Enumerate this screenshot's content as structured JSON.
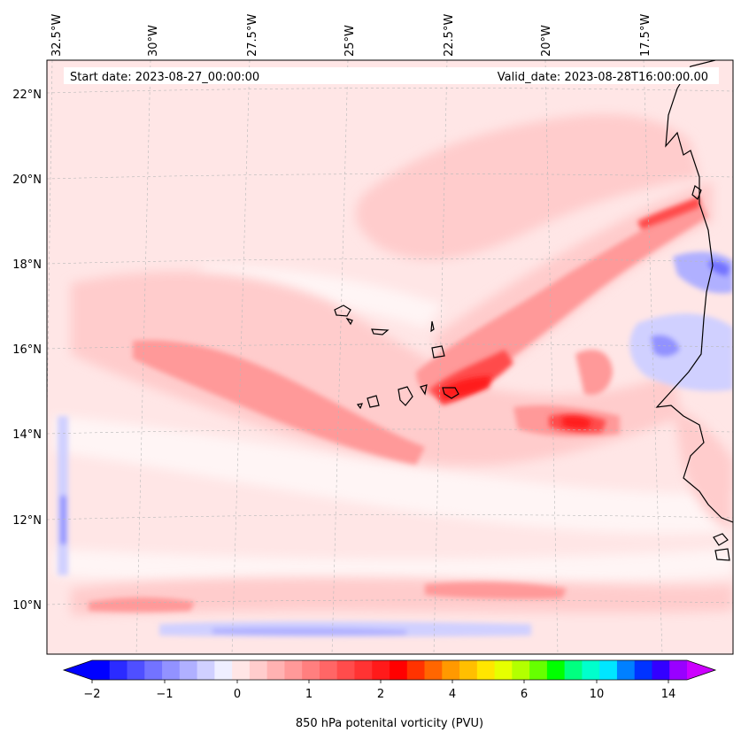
{
  "header": {
    "start_date": "Start date: 2023-08-27_00:00:00",
    "valid_date": "Valid_date: 2023-08-28T16:00:00.00"
  },
  "map": {
    "lon_labels": [
      "32.5°W",
      "30°W",
      "27.5°W",
      "25°W",
      "22.5°W",
      "20°W",
      "17.5°W"
    ],
    "lat_labels": [
      "22°N",
      "20°N",
      "18°N",
      "16°N",
      "14°N",
      "12°N",
      "10°N"
    ],
    "field": "850 hPa potential vorticity",
    "gridlines": true,
    "coastlines": true
  },
  "colorbar": {
    "label": "850 hPa potenital vorticity (PVU)",
    "tick_labels": [
      "−2",
      "−1",
      "0",
      "1",
      "2",
      "4",
      "6",
      "10",
      "14"
    ],
    "extend": "both",
    "colors": [
      "#0000ff",
      "#2b2bff",
      "#4f4fff",
      "#7373ff",
      "#9292ff",
      "#b0b0ff",
      "#d0d0ff",
      "#efefff",
      "#ffe6e6",
      "#ffcccc",
      "#ffb2b2",
      "#ff9999",
      "#ff7f7f",
      "#ff6666",
      "#ff4c4c",
      "#ff3333",
      "#ff1a1a",
      "#ff0000",
      "#ff3300",
      "#ff6600",
      "#ff9900",
      "#ffbf00",
      "#ffe600",
      "#e6ff00",
      "#b3ff00",
      "#66ff00",
      "#00ff00",
      "#00ff80",
      "#00ffcc",
      "#00e6ff",
      "#0080ff",
      "#0033ff",
      "#3300ff",
      "#9900ff"
    ],
    "under_color": "#0000ff",
    "over_color": "#cc00ff"
  }
}
